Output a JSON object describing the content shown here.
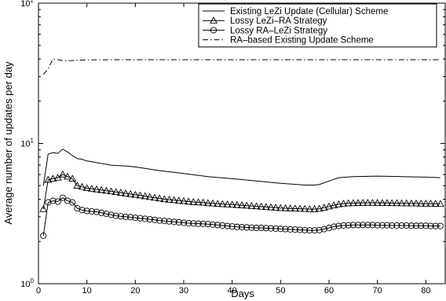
{
  "chart_data": {
    "type": "line",
    "xlabel": "Days",
    "ylabel": "Average number of updates per day",
    "xlim": [
      0,
      84
    ],
    "ylim": [
      1,
      100
    ],
    "yscale": "log",
    "xticks": [
      0,
      10,
      20,
      30,
      40,
      50,
      60,
      70,
      80
    ],
    "xtick_labels": [
      "0",
      "10",
      "20",
      "30",
      "40",
      "50",
      "60",
      "70",
      "80"
    ],
    "ytick_labels": [
      {
        "base": "10",
        "exp": "0",
        "value": 1
      },
      {
        "base": "10",
        "exp": "1",
        "value": 10
      },
      {
        "base": "10",
        "exp": "2",
        "value": 100
      }
    ],
    "grid": false,
    "legend_position": "top-right",
    "series": [
      {
        "name": "Existing LeZi Update (Cellular) Scheme",
        "style": "solid",
        "marker": "none",
        "color": "#000000",
        "x": [
          1,
          2,
          3,
          4,
          5,
          6,
          7,
          8,
          9,
          10,
          12,
          15,
          18,
          20,
          25,
          30,
          35,
          40,
          45,
          50,
          55,
          57,
          58,
          60,
          62,
          65,
          70,
          75,
          80,
          83
        ],
        "y": [
          5.0,
          8.4,
          8.6,
          8.5,
          9.1,
          8.7,
          8.2,
          7.8,
          7.7,
          7.5,
          7.3,
          7.0,
          6.9,
          6.8,
          6.4,
          6.1,
          5.8,
          5.6,
          5.4,
          5.2,
          5.05,
          5.05,
          5.1,
          5.4,
          5.7,
          5.8,
          5.85,
          5.8,
          5.75,
          5.7
        ]
      },
      {
        "name": "Lossy LeZi–RA Strategy",
        "style": "solid",
        "marker": "triangle",
        "color": "#000000",
        "x": [
          1,
          2,
          3,
          4,
          5,
          6,
          7,
          8,
          9,
          10,
          11,
          12,
          13,
          14,
          15,
          16,
          17,
          18,
          19,
          20,
          21,
          22,
          23,
          24,
          25,
          26,
          27,
          28,
          29,
          30,
          31,
          32,
          33,
          34,
          35,
          36,
          37,
          38,
          39,
          40,
          41,
          42,
          43,
          44,
          45,
          46,
          47,
          48,
          49,
          50,
          51,
          52,
          53,
          54,
          55,
          56,
          57,
          58,
          59,
          60,
          61,
          62,
          63,
          64,
          65,
          66,
          67,
          68,
          69,
          70,
          71,
          72,
          73,
          74,
          75,
          76,
          77,
          78,
          79,
          80,
          81,
          82,
          83
        ],
        "y": [
          3.4,
          5.5,
          5.6,
          5.7,
          6.0,
          5.8,
          5.6,
          5.0,
          4.9,
          4.8,
          4.75,
          4.7,
          4.65,
          4.6,
          4.55,
          4.5,
          4.45,
          4.4,
          4.35,
          4.3,
          4.25,
          4.2,
          4.15,
          4.1,
          4.05,
          4.0,
          3.97,
          3.94,
          3.91,
          3.88,
          3.85,
          3.82,
          3.8,
          3.78,
          3.75,
          3.73,
          3.71,
          3.69,
          3.67,
          3.66,
          3.64,
          3.62,
          3.6,
          3.58,
          3.56,
          3.54,
          3.52,
          3.5,
          3.48,
          3.46,
          3.45,
          3.44,
          3.43,
          3.42,
          3.41,
          3.4,
          3.4,
          3.42,
          3.48,
          3.55,
          3.62,
          3.68,
          3.72,
          3.74,
          3.75,
          3.76,
          3.77,
          3.77,
          3.77,
          3.77,
          3.76,
          3.76,
          3.75,
          3.75,
          3.74,
          3.74,
          3.73,
          3.73,
          3.72,
          3.72,
          3.72,
          3.71,
          3.7
        ]
      },
      {
        "name": "Lossy RA–LeZi Strategy",
        "style": "solid",
        "marker": "circle",
        "color": "#000000",
        "x": [
          1,
          2,
          3,
          4,
          5,
          6,
          7,
          8,
          9,
          10,
          11,
          12,
          13,
          14,
          15,
          16,
          17,
          18,
          19,
          20,
          21,
          22,
          23,
          24,
          25,
          26,
          27,
          28,
          29,
          30,
          31,
          32,
          33,
          34,
          35,
          36,
          37,
          38,
          39,
          40,
          41,
          42,
          43,
          44,
          45,
          46,
          47,
          48,
          49,
          50,
          51,
          52,
          53,
          54,
          55,
          56,
          57,
          58,
          59,
          60,
          61,
          62,
          63,
          64,
          65,
          66,
          67,
          68,
          69,
          70,
          71,
          72,
          73,
          74,
          75,
          76,
          77,
          78,
          79,
          80,
          81,
          82,
          83
        ],
        "y": [
          2.2,
          3.8,
          3.9,
          3.85,
          4.1,
          3.9,
          3.8,
          3.45,
          3.35,
          3.3,
          3.28,
          3.25,
          3.2,
          3.15,
          3.1,
          3.05,
          3.02,
          3.0,
          2.98,
          2.95,
          2.93,
          2.9,
          2.88,
          2.85,
          2.82,
          2.8,
          2.78,
          2.76,
          2.74,
          2.72,
          2.7,
          2.69,
          2.68,
          2.67,
          2.66,
          2.64,
          2.62,
          2.6,
          2.58,
          2.56,
          2.54,
          2.53,
          2.52,
          2.51,
          2.5,
          2.5,
          2.49,
          2.48,
          2.47,
          2.46,
          2.45,
          2.44,
          2.43,
          2.42,
          2.41,
          2.4,
          2.4,
          2.41,
          2.45,
          2.5,
          2.55,
          2.58,
          2.6,
          2.61,
          2.62,
          2.62,
          2.62,
          2.62,
          2.62,
          2.61,
          2.61,
          2.61,
          2.6,
          2.6,
          2.6,
          2.6,
          2.59,
          2.59,
          2.59,
          2.59,
          2.58,
          2.58,
          2.58
        ]
      },
      {
        "name": "RA–based Existing Update Scheme",
        "style": "dashdot",
        "marker": "none",
        "color": "#000000",
        "x": [
          1,
          2,
          3,
          4,
          5,
          6,
          7,
          8,
          10,
          15,
          20,
          30,
          40,
          50,
          60,
          70,
          80,
          83
        ],
        "y": [
          31,
          34,
          40,
          39.5,
          39,
          38.8,
          39,
          39.2,
          39.4,
          39.5,
          39.5,
          39.5,
          39.5,
          39.5,
          39.5,
          39.5,
          39.5,
          39.5
        ]
      }
    ]
  }
}
